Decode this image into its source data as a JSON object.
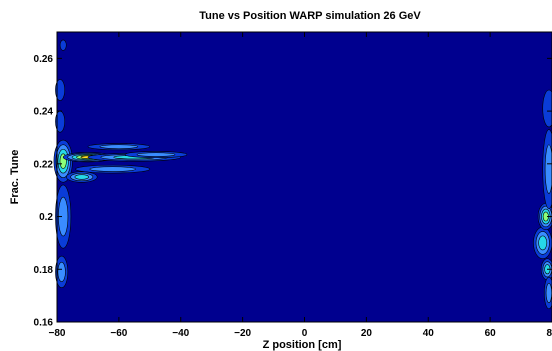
{
  "chart_data": {
    "type": "heatmap",
    "title": "Tune vs Position  WARP simulation 26 GeV",
    "xlabel": "Z position [cm]",
    "ylabel": "Frac. Tune",
    "xlim": [
      -80,
      80
    ],
    "ylim": [
      0.16,
      0.27
    ],
    "x_ticks": [
      -80,
      -60,
      -40,
      -20,
      0,
      20,
      40,
      60,
      80
    ],
    "x_tick_labels": [
      "−80",
      "−60",
      "−40",
      "−20",
      "0",
      "20",
      "40",
      "60",
      "80"
    ],
    "y_ticks": [
      0.16,
      0.18,
      0.2,
      0.22,
      0.24,
      0.26
    ],
    "y_tick_labels": [
      "0.16",
      "0.18",
      "0.2",
      "0.22",
      "0.24",
      "0.26"
    ],
    "grid": false,
    "colormap": [
      "#00008f",
      "#0a3cd8",
      "#3a8cff",
      "#26d8e8",
      "#8cff78",
      "#ffe020"
    ],
    "background_level_color": "#00008f",
    "contour_line_color": "#000000",
    "hot_spots": [
      {
        "z": -78,
        "tune": 0.221,
        "z_halfwidth": 3,
        "tune_halfwidth": 0.008,
        "level": 4
      },
      {
        "z": -70,
        "tune": 0.2225,
        "z_halfwidth": 8,
        "tune_halfwidth": 0.0018,
        "level": 5
      },
      {
        "z": -55,
        "tune": 0.2225,
        "z_halfwidth": 15,
        "tune_halfwidth": 0.0015,
        "level": 3
      },
      {
        "z": -48,
        "tune": 0.2235,
        "z_halfwidth": 10,
        "tune_halfwidth": 0.0012,
        "level": 2
      },
      {
        "z": -62,
        "tune": 0.218,
        "z_halfwidth": 12,
        "tune_halfwidth": 0.0015,
        "level": 2
      },
      {
        "z": -60,
        "tune": 0.2265,
        "z_halfwidth": 10,
        "tune_halfwidth": 0.0012,
        "level": 2
      },
      {
        "z": -72,
        "tune": 0.215,
        "z_halfwidth": 5,
        "tune_halfwidth": 0.002,
        "level": 3
      },
      {
        "z": -78,
        "tune": 0.2,
        "z_halfwidth": 2.5,
        "tune_halfwidth": 0.012,
        "level": 2
      },
      {
        "z": -78.5,
        "tune": 0.179,
        "z_halfwidth": 2,
        "tune_halfwidth": 0.006,
        "level": 2
      },
      {
        "z": -79,
        "tune": 0.236,
        "z_halfwidth": 1.5,
        "tune_halfwidth": 0.004,
        "level": 1
      },
      {
        "z": -79,
        "tune": 0.248,
        "z_halfwidth": 1.5,
        "tune_halfwidth": 0.004,
        "level": 1
      },
      {
        "z": -78,
        "tune": 0.265,
        "z_halfwidth": 1,
        "tune_halfwidth": 0.002,
        "level": 1
      },
      {
        "z": 77,
        "tune": 0.19,
        "z_halfwidth": 3,
        "tune_halfwidth": 0.006,
        "level": 3
      },
      {
        "z": 78,
        "tune": 0.2,
        "z_halfwidth": 2.5,
        "tune_halfwidth": 0.005,
        "level": 4
      },
      {
        "z": 79,
        "tune": 0.218,
        "z_halfwidth": 2,
        "tune_halfwidth": 0.015,
        "level": 2
      },
      {
        "z": 79,
        "tune": 0.241,
        "z_halfwidth": 2,
        "tune_halfwidth": 0.007,
        "level": 1
      },
      {
        "z": 78.5,
        "tune": 0.18,
        "z_halfwidth": 2,
        "tune_halfwidth": 0.004,
        "level": 3
      },
      {
        "z": 79,
        "tune": 0.171,
        "z_halfwidth": 1.5,
        "tune_halfwidth": 0.006,
        "level": 2
      }
    ]
  }
}
